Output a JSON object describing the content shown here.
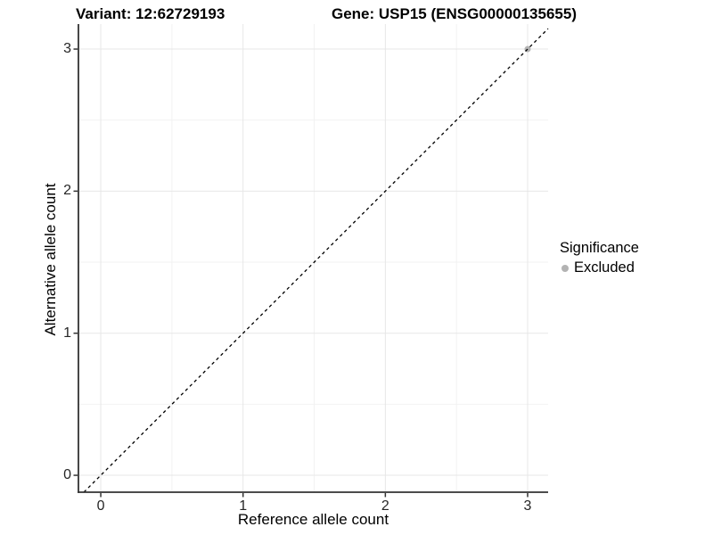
{
  "titles": {
    "left": "Variant: 12:62729193",
    "right": "Gene: USP15 (ENSG00000135655)"
  },
  "chart_data": {
    "type": "scatter",
    "title": "Variant: 12:62729193   Gene: USP15 (ENSG00000135655)",
    "xlabel": "Reference allele count",
    "ylabel": "Alternative allele count",
    "xlim": [
      -0.157,
      3.144
    ],
    "ylim": [
      -0.119,
      3.176
    ],
    "x_ticks": [
      0,
      1,
      2,
      3
    ],
    "y_ticks": [
      0,
      1,
      2,
      3
    ],
    "x_minor_ticks": [
      0.5,
      1.5,
      2.5
    ],
    "y_minor_ticks": [
      0.5,
      1.5,
      2.5
    ],
    "grid": true,
    "points": [
      {
        "x": 3,
        "y": 3,
        "series": "Excluded"
      }
    ],
    "reference_line": {
      "slope": 1,
      "intercept": 0,
      "style": "dashed",
      "color": "#000000"
    },
    "legend": {
      "title": "Significance",
      "position": "right",
      "items": [
        {
          "label": "Excluded",
          "color": "#b3b3b3",
          "marker": "circle"
        }
      ]
    }
  },
  "colors": {
    "background": "#ffffff",
    "axis_line": "#333333",
    "tick_mark": "#333333",
    "tick_label": "#262626",
    "grid_major": "#e7e7e7",
    "grid_minor": "#f2f2f2",
    "point": "#b3b3b3"
  }
}
